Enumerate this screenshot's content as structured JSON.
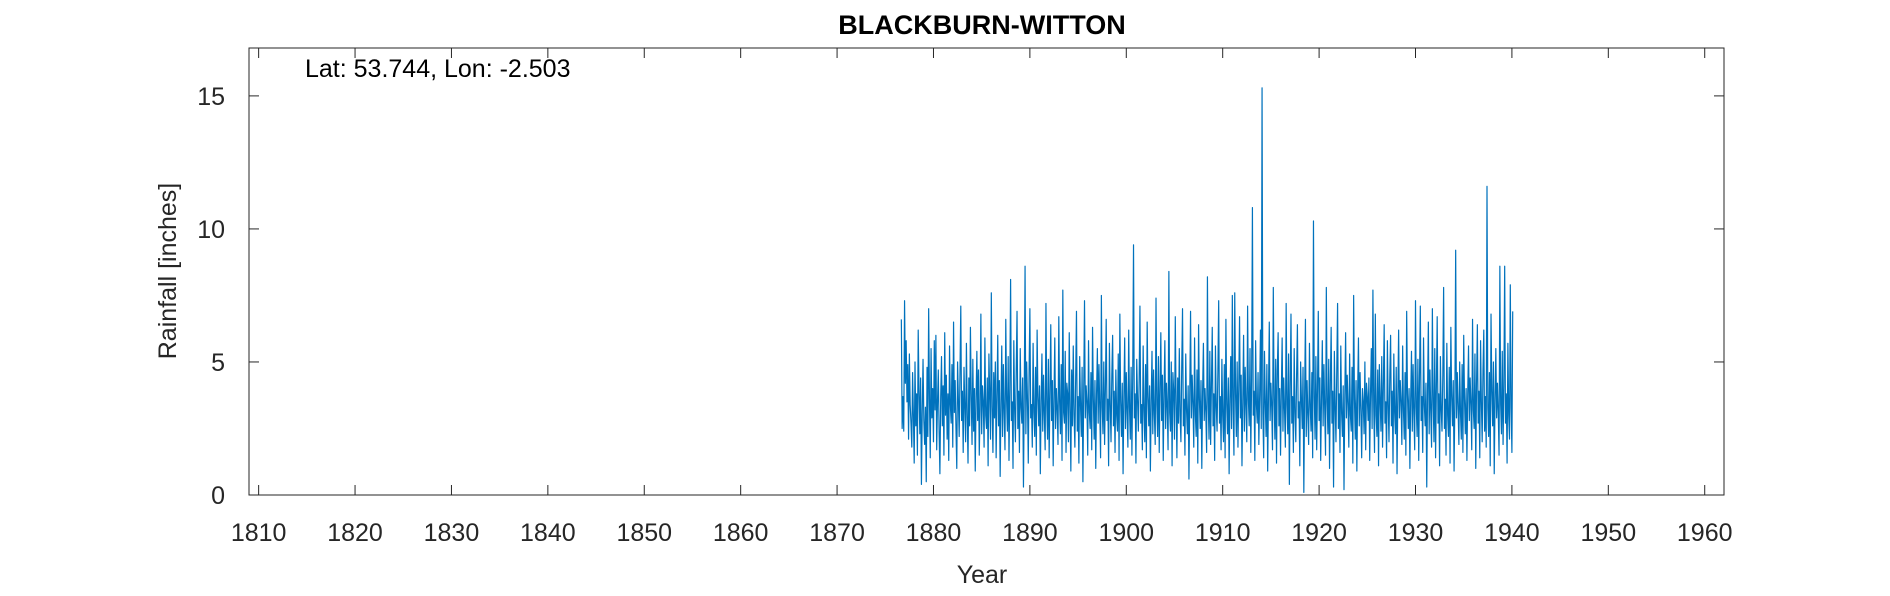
{
  "chart_data": {
    "type": "line",
    "title": "BLACKBURN-WITTON",
    "annotation": "Lat: 53.744, Lon: -2.503",
    "xlabel": "Year",
    "ylabel": "Rainfall [inches]",
    "xlim": [
      1809,
      1962
    ],
    "ylim": [
      0,
      16.8
    ],
    "xticks": [
      1810,
      1820,
      1830,
      1840,
      1850,
      1860,
      1870,
      1880,
      1890,
      1900,
      1910,
      1920,
      1930,
      1940,
      1950,
      1960
    ],
    "yticks": [
      0,
      5,
      10,
      15
    ],
    "grid": false,
    "series": [
      {
        "color": "#0072BD",
        "monthly_start": "1876-09",
        "values": [
          6.6,
          2.5,
          3.7,
          2.4,
          7.3,
          4.2,
          5.8,
          3.5,
          4.9,
          2.1,
          5.3,
          3.4,
          2.7,
          1.8,
          4.6,
          3.0,
          1.2,
          5.0,
          2.6,
          3.8,
          1.5,
          6.2,
          3.9,
          2.3,
          4.4,
          0.4,
          3.1,
          5.1,
          2.8,
          1.9,
          3.3,
          0.5,
          4.8,
          2.2,
          7.0,
          3.6,
          1.4,
          5.5,
          2.9,
          4.0,
          2.0,
          5.8,
          3.2,
          6.0,
          1.7,
          3.5,
          4.7,
          2.4,
          0.8,
          3.7,
          5.2,
          2.6,
          4.1,
          1.5,
          6.1,
          3.0,
          4.5,
          2.1,
          3.8,
          1.3,
          5.6,
          3.4,
          2.7,
          4.9,
          1.8,
          6.5,
          3.1,
          4.3,
          2.5,
          1.0,
          5.0,
          3.6,
          2.2,
          4.6,
          7.1,
          2.8,
          3.9,
          1.6,
          4.8,
          3.3,
          2.0,
          5.7,
          3.0,
          1.2,
          4.4,
          2.6,
          6.3,
          3.7,
          1.9,
          5.1,
          2.4,
          4.0,
          0.9,
          3.6,
          5.4,
          2.8,
          4.7,
          1.5,
          3.2,
          6.8,
          2.3,
          4.1,
          3.5,
          1.8,
          5.9,
          3.0,
          2.5,
          4.4,
          1.1,
          5.3,
          3.8,
          2.1,
          7.6,
          3.3,
          1.6,
          4.6,
          2.9,
          5.0,
          1.4,
          3.7,
          6.0,
          2.6,
          4.3,
          0.7,
          3.4,
          5.6,
          2.2,
          4.9,
          3.1,
          1.7,
          6.6,
          3.6,
          2.4,
          5.2,
          1.3,
          4.0,
          8.1,
          2.8,
          3.5,
          1.0,
          5.8,
          3.2,
          2.0,
          4.7,
          6.9,
          2.5,
          3.9,
          1.6,
          5.5,
          3.3,
          2.7,
          4.4,
          0.3,
          3.8,
          8.6,
          2.3,
          5.0,
          3.6,
          1.2,
          4.6,
          7.0,
          2.9,
          3.4,
          1.8,
          5.7,
          3.1,
          2.2,
          4.8,
          1.5,
          6.2,
          3.7,
          2.6,
          4.1,
          0.8,
          3.5,
          5.3,
          2.4,
          4.5,
          3.0,
          1.7,
          7.2,
          3.4,
          2.1,
          5.1,
          1.4,
          3.9,
          6.4,
          2.8,
          4.3,
          1.1,
          3.6,
          5.9,
          2.5,
          4.0,
          3.2,
          1.9,
          6.7,
          3.5,
          2.3,
          4.9,
          1.3,
          7.7,
          3.1,
          2.7,
          5.4,
          1.6,
          4.2,
          3.8,
          2.0,
          6.1,
          3.3,
          0.9,
          4.7,
          2.6,
          5.6,
          3.0,
          1.8,
          4.4,
          6.9,
          2.4,
          3.7,
          1.2,
          5.2,
          3.4,
          2.2,
          4.8,
          0.5,
          3.9,
          7.3,
          2.9,
          4.1,
          3.5,
          1.5,
          5.8,
          3.1,
          2.5,
          4.6,
          1.7,
          6.3,
          3.6,
          2.1,
          4.3,
          1.0,
          3.8,
          5.5,
          2.7,
          4.9,
          3.2,
          1.4,
          7.5,
          3.3,
          2.3,
          5.0,
          1.9,
          4.0,
          6.6,
          2.8,
          3.6,
          1.1,
          5.7,
          3.4,
          2.0,
          4.5,
          6.0,
          2.6,
          3.9,
          1.6,
          4.7,
          3.0,
          2.4,
          5.3,
          1.3,
          6.8,
          3.5,
          2.2,
          4.2,
          0.8,
          3.7,
          5.9,
          2.5,
          4.6,
          3.1,
          1.8,
          6.2,
          3.3,
          2.1,
          4.8,
          1.5,
          4.4,
          9.4,
          2.9,
          3.8,
          1.2,
          5.1,
          3.6,
          2.4,
          4.3,
          7.1,
          2.7,
          3.4,
          1.7,
          5.6,
          3.2,
          2.0,
          4.9,
          1.4,
          6.5,
          3.7,
          2.6,
          4.1,
          0.9,
          3.5,
          5.4,
          2.3,
          4.7,
          3.0,
          1.9,
          7.4,
          3.4,
          2.2,
          5.2,
          1.6,
          4.0,
          6.1,
          2.8,
          4.5,
          1.3,
          3.8,
          5.8,
          2.5,
          4.2,
          3.3,
          1.7,
          8.4,
          3.1,
          2.4,
          5.0,
          1.1,
          4.6,
          3.9,
          2.1,
          6.7,
          3.5,
          1.4,
          4.4,
          2.7,
          5.5,
          3.0,
          2.0,
          4.8,
          7.0,
          2.6,
          3.6,
          1.5,
          5.3,
          3.2,
          2.3,
          4.1,
          0.6,
          3.7,
          6.9,
          2.9,
          4.5,
          3.4,
          1.8,
          5.9,
          3.0,
          2.2,
          4.7,
          1.2,
          6.4,
          3.6,
          2.5,
          4.3,
          1.0,
          3.9,
          5.7,
          2.8,
          4.0,
          3.1,
          1.6,
          8.2,
          3.5,
          2.1,
          5.4,
          1.9,
          4.2,
          6.3,
          2.6,
          3.8,
          1.3,
          5.6,
          3.3,
          2.4,
          4.6,
          7.3,
          2.7,
          3.7,
          1.7,
          5.1,
          3.0,
          2.0,
          4.9,
          1.4,
          6.6,
          3.4,
          2.3,
          4.4,
          0.8,
          3.6,
          5.2,
          2.5,
          7.5,
          3.2,
          1.5,
          7.6,
          3.8,
          2.2,
          5.0,
          1.8,
          4.1,
          6.7,
          2.9,
          4.5,
          1.1,
          3.5,
          6.0,
          2.4,
          4.8,
          3.3,
          2.0,
          7.1,
          3.6,
          2.6,
          5.5,
          1.6,
          4.3,
          10.8,
          3.0,
          3.9,
          1.3,
          5.8,
          3.4,
          2.7,
          4.6,
          1.9,
          3.7,
          6.2,
          2.5,
          15.3,
          3.1,
          1.4,
          5.4,
          3.5,
          2.2,
          4.9,
          0.9,
          3.8,
          6.5,
          2.8,
          4.2,
          3.3,
          1.7,
          7.8,
          3.6,
          2.1,
          5.1,
          1.2,
          4.7,
          6.1,
          2.6,
          4.0,
          1.5,
          3.9,
          5.9,
          2.4,
          4.4,
          3.2,
          1.8,
          7.2,
          3.4,
          2.3,
          5.3,
          0.4,
          4.1,
          6.8,
          2.7,
          3.7,
          1.6,
          5.5,
          3.1,
          2.0,
          4.5,
          6.4,
          2.9,
          3.5,
          1.1,
          5.0,
          3.6,
          2.5,
          4.8,
          0.1,
          3.8,
          6.6,
          2.2,
          4.3,
          3.0,
          1.9,
          5.7,
          3.3,
          2.4,
          4.6,
          1.4,
          10.3,
          3.7,
          2.1,
          5.2,
          1.7,
          4.0,
          6.9,
          2.8,
          4.4,
          1.3,
          3.6,
          5.8,
          2.6,
          4.9,
          3.2,
          1.5,
          7.8,
          3.5,
          2.3,
          5.1,
          1.0,
          4.2,
          6.3,
          2.7,
          3.9,
          0.3,
          5.4,
          3.3,
          2.0,
          4.7,
          7.2,
          2.5,
          3.8,
          1.6,
          5.6,
          3.1,
          2.2,
          4.1,
          0.2,
          3.7,
          6.1,
          2.9,
          4.5,
          3.4,
          1.8,
          5.3,
          3.0,
          2.4,
          4.8,
          1.2,
          7.5,
          3.6,
          2.1,
          4.3,
          0.9,
          3.9,
          5.9,
          2.6,
          4.6,
          3.2,
          1.4,
          4.0,
          3.5,
          2.3,
          5.0,
          1.7,
          4.2,
          3.7,
          2.8,
          4.4,
          1.3,
          3.8,
          5.5,
          2.5,
          7.7,
          3.3,
          1.6,
          6.8,
          3.0,
          2.2,
          4.7,
          1.1,
          4.9,
          3.6,
          2.4,
          5.2,
          1.8,
          4.1,
          6.4,
          2.7,
          3.5,
          1.4,
          5.8,
          3.4,
          2.0,
          4.5,
          6.0,
          2.6,
          3.9,
          1.2,
          5.3,
          3.1,
          2.3,
          4.8,
          0.8,
          3.7,
          6.2,
          2.9,
          4.3,
          3.5,
          1.9,
          5.6,
          3.2,
          2.1,
          4.6,
          1.5,
          6.9,
          3.8,
          2.5,
          4.0,
          1.0,
          3.6,
          5.4,
          2.4,
          4.9,
          3.0,
          1.7,
          7.3,
          3.3,
          2.2,
          5.1,
          1.3,
          4.4,
          7.1,
          2.8,
          3.7,
          1.6,
          5.9,
          3.4,
          2.6,
          4.2,
          0.3,
          3.9,
          6.5,
          2.3,
          4.7,
          3.1,
          1.8,
          7.0,
          3.5,
          2.0,
          5.5,
          1.4,
          4.1,
          6.7,
          2.7,
          3.8,
          1.1,
          5.2,
          3.2,
          2.4,
          4.5,
          7.8,
          2.5,
          3.6,
          1.5,
          5.7,
          3.0,
          2.2,
          4.8,
          1.2,
          6.3,
          3.7,
          2.6,
          4.3,
          0.9,
          3.5,
          9.2,
          2.9,
          4.6,
          3.3,
          1.9,
          5.0,
          3.1,
          2.1,
          4.9,
          1.6,
          6.0,
          3.6,
          2.3,
          4.0,
          1.3,
          3.8,
          5.6,
          2.8,
          4.4,
          3.4,
          1.7,
          6.6,
          3.2,
          2.5,
          5.3,
          1.0,
          4.2,
          6.4,
          2.7,
          3.9,
          1.4,
          5.8,
          3.5,
          2.0,
          4.7,
          6.2,
          2.4,
          3.7,
          1.8,
          11.6,
          3.3,
          2.2,
          4.6,
          1.1,
          6.8,
          3.9,
          2.6,
          5.0,
          0.8,
          3.6,
          5.5,
          2.9,
          4.2,
          3.1,
          1.5,
          8.6,
          3.4,
          2.3,
          5.4,
          1.9,
          4.1,
          8.6,
          2.7,
          3.8,
          1.2,
          5.7,
          3.0,
          2.1,
          7.9,
          3.3,
          1.6,
          6.9
        ]
      }
    ]
  }
}
